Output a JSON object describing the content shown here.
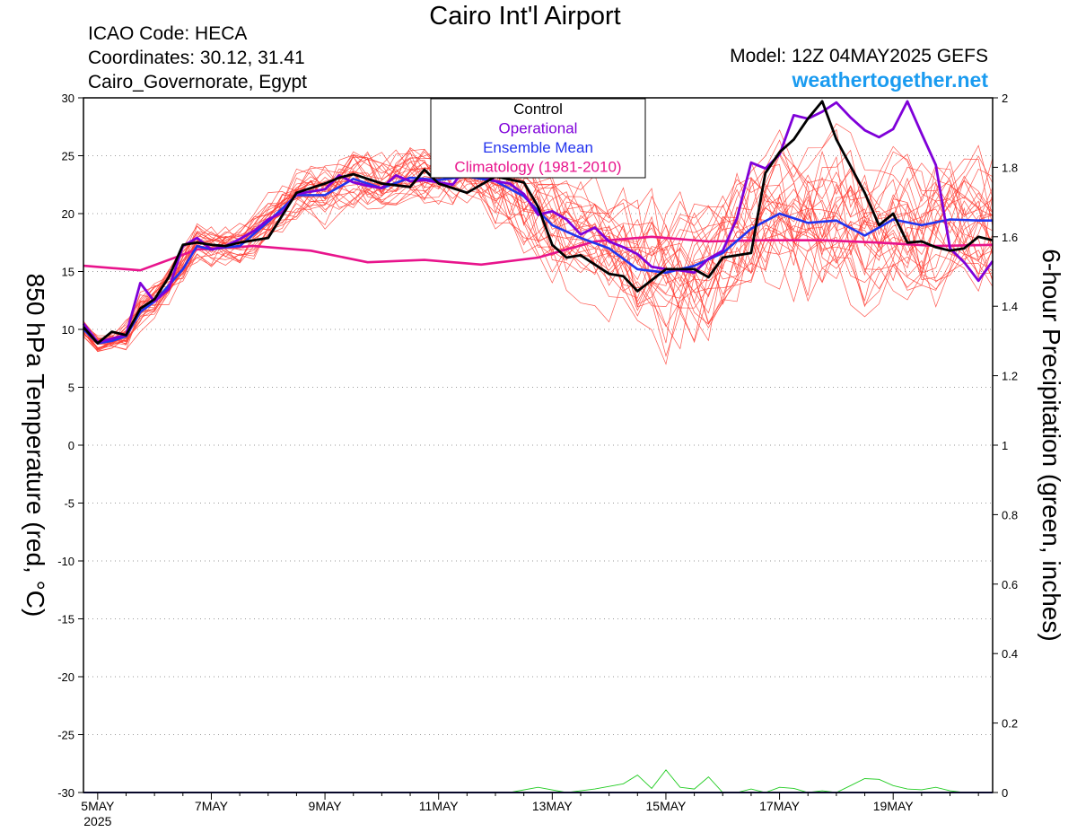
{
  "header": {
    "title": "Cairo Int'l Airport",
    "icao": "ICAO Code: HECA",
    "coordinates": "Coordinates: 30.12, 31.41",
    "region": "Cairo_Governorate, Egypt",
    "model": "Model: 12Z 04MAY2025 GEFS",
    "site": "weathertogether.net"
  },
  "colors": {
    "control": "#000000",
    "operational": "#7f00d9",
    "ensemble_mean": "#2233ee",
    "climatology": "#e8148c",
    "members": "#ff3c32",
    "precip": "#22cc22",
    "site": "#1a9bf0"
  },
  "chart_data": {
    "type": "line",
    "title": "Cairo Int'l Airport",
    "ylabel": "850 hPa Temperature (red, °C)",
    "y2label": "6-hour Precipitation (green, inches)",
    "ylim": [
      -30,
      30
    ],
    "y2lim": [
      0,
      2
    ],
    "yticks": [
      "30",
      "25",
      "20",
      "15",
      "10",
      "5",
      "0",
      "-5",
      "-10",
      "-15",
      "-20",
      "-25",
      "-30"
    ],
    "y2ticks": [
      "2",
      "1.8",
      "1.6",
      "1.4",
      "1.2",
      "1",
      "0.8",
      "0.6",
      "0.4",
      "0.2",
      "0"
    ],
    "xticks": [
      {
        "label": "5MAY",
        "sub": "2025",
        "t": 0.5
      },
      {
        "label": "7MAY",
        "t": 2.5
      },
      {
        "label": "9MAY",
        "t": 4.5
      },
      {
        "label": "11MAY",
        "t": 6.5
      },
      {
        "label": "13MAY",
        "t": 8.5
      },
      {
        "label": "15MAY",
        "t": 10.5
      },
      {
        "label": "17MAY",
        "t": 12.5
      },
      {
        "label": "19MAY",
        "t": 14.5
      }
    ],
    "x_unit": "days after 00Z 5MAY2025",
    "x_range": [
      0.25,
      16.25
    ],
    "legend": [
      "Control",
      "Operational",
      "Ensemble Mean",
      "Climatology (1981-2010)"
    ],
    "legend_position": "top-center",
    "grid": true,
    "series": [
      {
        "name": "Control",
        "role": "control",
        "x": [
          0.25,
          0.5,
          0.75,
          1,
          1.25,
          1.5,
          1.75,
          2,
          2.25,
          2.5,
          2.75,
          3,
          3.5,
          4,
          4.25,
          4.5,
          4.75,
          5,
          5.5,
          6,
          6.25,
          6.5,
          7,
          7.5,
          8,
          8.25,
          8.5,
          8.75,
          9,
          9.5,
          9.75,
          10,
          10.5,
          11,
          11.25,
          11.5,
          12,
          12.25,
          12.5,
          12.75,
          13,
          13.25,
          13.5,
          14,
          14.25,
          14.5,
          14.75,
          15,
          15.25,
          15.5,
          15.75,
          16,
          16.25
        ],
        "y": [
          10.2,
          8.8,
          9.8,
          9.5,
          11.8,
          12.6,
          14.5,
          17.3,
          17.5,
          17.3,
          17.2,
          17.5,
          17.9,
          21.8,
          22.2,
          22.6,
          23.1,
          23.4,
          22.6,
          22.3,
          23.8,
          22.6,
          21.8,
          23.2,
          22.7,
          20.6,
          17.3,
          16.2,
          16.4,
          14.8,
          14.6,
          13.3,
          15.2,
          15.2,
          14.5,
          16.2,
          16.6,
          23.5,
          25.3,
          26.4,
          28.2,
          29.7,
          26.4,
          21.8,
          19.0,
          20.0,
          17.5,
          17.6,
          17.1,
          16.8,
          17.0,
          18.0,
          17.7
        ]
      },
      {
        "name": "Operational",
        "role": "operational",
        "x": [
          0.25,
          0.5,
          0.75,
          1,
          1.25,
          1.5,
          1.75,
          2,
          2.25,
          2.5,
          2.75,
          3,
          3.25,
          3.5,
          3.75,
          4,
          4.25,
          4.5,
          4.75,
          5,
          5.25,
          5.5,
          5.75,
          6,
          6.25,
          6.5,
          6.75,
          7,
          7.25,
          7.5,
          7.75,
          8,
          8.25,
          8.5,
          8.75,
          9,
          9.25,
          9.5,
          9.75,
          10,
          10.25,
          10.5,
          10.75,
          11,
          11.25,
          11.5,
          11.75,
          12,
          12.25,
          12.5,
          12.75,
          13,
          13.25,
          13.5,
          13.75,
          14,
          14.25,
          14.5,
          14.75,
          15,
          15.25,
          15.5,
          15.75,
          16,
          16.25
        ],
        "y": [
          10.5,
          8.9,
          9.2,
          9.5,
          14.0,
          12.4,
          13.5,
          17.2,
          17.9,
          16.9,
          17.2,
          17.8,
          18.5,
          19.5,
          20.1,
          21.7,
          21.9,
          22.1,
          23.3,
          22.7,
          22.4,
          22.2,
          23.3,
          22.8,
          22.9,
          22.7,
          22.5,
          24.1,
          23.3,
          22.8,
          22.6,
          21.7,
          19.9,
          20.2,
          19.5,
          18.2,
          18.8,
          17.6,
          17.1,
          16.5,
          15.4,
          15.2,
          15.1,
          14.9,
          16.1,
          16.8,
          19.6,
          24.4,
          23.9,
          25.1,
          28.5,
          28.2,
          28.8,
          29.6,
          28.3,
          27.2,
          26.6,
          27.3,
          29.7,
          26.9,
          24.2,
          17.0,
          15.8,
          14.2,
          15.9
        ]
      },
      {
        "name": "Ensemble Mean",
        "role": "mean",
        "x": [
          0.25,
          0.5,
          0.75,
          1,
          1.25,
          1.5,
          1.75,
          2,
          2.25,
          2.5,
          2.75,
          3,
          3.5,
          4,
          4.5,
          5,
          5.5,
          6,
          6.5,
          7,
          7.5,
          8,
          8.5,
          9,
          9.5,
          10,
          10.5,
          11,
          11.5,
          12,
          12.5,
          13,
          13.5,
          14,
          14.5,
          15,
          15.5,
          16,
          16.25
        ],
        "y": [
          10.0,
          8.8,
          9.0,
          9.4,
          11.5,
          12.4,
          13.8,
          15.2,
          17.2,
          16.9,
          17.1,
          17.2,
          19.3,
          21.6,
          21.6,
          23.0,
          22.2,
          23.1,
          22.9,
          23.2,
          22.8,
          21.5,
          19.0,
          17.9,
          17.0,
          15.2,
          14.9,
          15.5,
          16.6,
          18.7,
          20.0,
          19.2,
          19.4,
          18.1,
          19.5,
          19.0,
          19.5,
          19.4,
          19.4
        ]
      },
      {
        "name": "Climatology (1981-2010)",
        "role": "clim",
        "x": [
          0.25,
          1.25,
          2.25,
          3.25,
          4.25,
          5.25,
          6.25,
          7.25,
          8.25,
          9.25,
          10.25,
          11.25,
          12.25,
          13.25,
          14.25,
          15.25,
          16.25
        ],
        "y": [
          15.5,
          15.1,
          16.9,
          17.2,
          16.8,
          15.8,
          16.0,
          15.6,
          16.2,
          17.6,
          18.0,
          17.6,
          17.7,
          17.7,
          17.5,
          17.2,
          17.3
        ]
      }
    ],
    "precip": {
      "x": [
        0.25,
        7.75,
        8.25,
        8.75,
        9.25,
        9.75,
        10.0,
        10.25,
        10.5,
        10.75,
        11.0,
        11.25,
        11.5,
        11.75,
        12.0,
        12.25,
        12.5,
        12.75,
        13.0,
        13.25,
        13.5,
        13.75,
        14.0,
        14.25,
        14.5,
        14.75,
        15.0,
        15.25,
        15.5,
        15.75,
        16.0,
        16.25
      ],
      "y": [
        0,
        0,
        0.015,
        0,
        0.01,
        0.025,
        0.05,
        0.012,
        0.065,
        0.015,
        0.01,
        0.045,
        0,
        0,
        0.01,
        0,
        0.015,
        0.012,
        0,
        0.005,
        0,
        0.02,
        0.04,
        0.038,
        0.02,
        0.01,
        0.008,
        0.015,
        0.005,
        0,
        0,
        0
      ]
    }
  }
}
